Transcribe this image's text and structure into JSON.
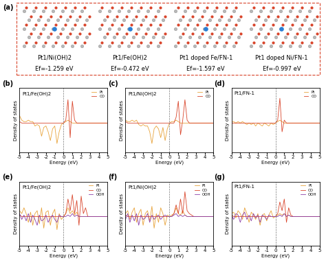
{
  "panel_a": {
    "label": "(a)",
    "structures": [
      {
        "name": "Pt1/Ni(OH)2",
        "energy": "Ef=-1.259 eV"
      },
      {
        "name": "Pt1/Fe(OH)2",
        "energy": "Ef=-0.472 eV"
      },
      {
        "name": "Pt1 doped Fe/FN-1",
        "energy": "Ef=-1.597 eV"
      },
      {
        "name": "Pt1 doped Ni/FN-1",
        "energy": "Ef=-0.997 eV"
      }
    ]
  },
  "chart_data": [
    {
      "panel": "(b)",
      "type": "line",
      "title": "Pt1/Fe(OH)2",
      "xlabel": "Energy (eV)",
      "ylabel": "Density of states",
      "x": [
        -5,
        -4.75,
        -4.5,
        -4.25,
        -4,
        -3.75,
        -3.5,
        -3.25,
        -3,
        -2.75,
        -2.5,
        -2.25,
        -2,
        -1.75,
        -1.5,
        -1.25,
        -1,
        -0.75,
        -0.5,
        -0.25,
        0,
        0.25,
        0.5,
        0.75,
        1,
        1.25,
        1.5,
        1.75,
        2,
        2.25,
        2.5,
        2.75,
        3,
        3.25,
        3.5,
        3.75,
        4,
        4.25,
        4.5,
        4.75,
        5
      ],
      "xlim": [
        -5,
        5
      ],
      "xticks": [
        -5,
        -4,
        -3,
        -2,
        -1,
        0,
        1,
        2,
        3,
        4,
        5
      ],
      "ylim": [
        -1,
        1.2
      ],
      "tick_labels": "x",
      "legend": "upper right",
      "series": [
        {
          "name": "Pt",
          "color": "#e8a33a",
          "values": [
            0.25,
            0.1,
            0.05,
            0.05,
            0.1,
            0.05,
            0.05,
            -0.1,
            -0.05,
            -0.1,
            -0.45,
            -0.15,
            -0.1,
            -0.3,
            -0.6,
            -0.2,
            -0.1,
            -0.7,
            -0.3,
            -0.05,
            0,
            0.05,
            0.1,
            0.05,
            0,
            0,
            0,
            0,
            0,
            0,
            0,
            0,
            0,
            0,
            0,
            0,
            0,
            0,
            0,
            0,
            0
          ]
        },
        {
          "name": "CO",
          "color": "#d9452b",
          "values": [
            0.05,
            0,
            0,
            0,
            0,
            0,
            0,
            0,
            0,
            0,
            0,
            0,
            0,
            0,
            0,
            0,
            0,
            0,
            0,
            0,
            0,
            0.1,
            0.8,
            -0.5,
            0.75,
            0.1,
            0,
            0,
            0,
            0,
            0,
            0,
            0,
            0,
            0,
            0,
            0,
            0,
            0,
            0,
            0
          ]
        }
      ]
    },
    {
      "panel": "(c)",
      "type": "line",
      "title": "Pt1/Ni(OH)2",
      "xlabel": "Energy (eV)",
      "ylabel": "Density of states",
      "x": [
        -5,
        -4.75,
        -4.5,
        -4.25,
        -4,
        -3.75,
        -3.5,
        -3.25,
        -3,
        -2.75,
        -2.5,
        -2.25,
        -2,
        -1.75,
        -1.5,
        -1.25,
        -1,
        -0.75,
        -0.5,
        -0.25,
        0,
        0.25,
        0.5,
        0.75,
        1,
        1.25,
        1.5,
        1.75,
        2,
        2.25,
        2.5,
        2.75,
        3,
        3.25,
        3.5,
        3.75,
        4,
        4.25,
        4.5,
        4.75,
        5
      ],
      "xlim": [
        -5,
        5
      ],
      "xticks": [
        -5,
        -4,
        -3,
        -2,
        -1,
        0,
        1,
        2,
        3,
        4,
        5
      ],
      "ylim": [
        -1,
        1.2
      ],
      "tick_labels": "x",
      "legend": "upper right",
      "series": [
        {
          "name": "Pt",
          "color": "#e8a33a",
          "values": [
            0.1,
            0.05,
            0.05,
            0.1,
            0.05,
            0.1,
            -0.05,
            -0.1,
            -0.05,
            -0.1,
            -0.1,
            -0.3,
            -0.7,
            -0.2,
            -0.1,
            -0.2,
            -0.5,
            -0.15,
            -0.6,
            -0.2,
            0,
            0.05,
            0.05,
            0.1,
            0.05,
            0,
            0,
            0,
            0,
            0,
            0,
            0,
            0,
            0,
            0,
            0,
            0,
            0,
            0,
            0,
            0
          ]
        },
        {
          "name": "CO",
          "color": "#d9452b",
          "values": [
            0.05,
            0,
            0,
            0,
            0,
            0,
            0,
            0,
            0,
            0,
            0,
            0,
            0,
            0,
            0,
            0,
            0,
            0,
            0,
            0,
            0,
            0,
            0,
            0.2,
            0.75,
            -0.4,
            0.1,
            0.8,
            0.1,
            0,
            0,
            0,
            0,
            0,
            0,
            0,
            0,
            0,
            0,
            0,
            0
          ]
        }
      ]
    },
    {
      "panel": "(d)",
      "type": "line",
      "title": "Pt1/FN-1",
      "xlabel": "Energy (eV)",
      "ylabel": "Density of states",
      "x": [
        -5,
        -4.75,
        -4.5,
        -4.25,
        -4,
        -3.75,
        -3.5,
        -3.25,
        -3,
        -2.75,
        -2.5,
        -2.25,
        -2,
        -1.75,
        -1.5,
        -1.25,
        -1,
        -0.75,
        -0.5,
        -0.25,
        0,
        0.25,
        0.5,
        0.75,
        1,
        1.25,
        1.5,
        1.75,
        2,
        2.25,
        2.5,
        2.75,
        3,
        3.25,
        3.5,
        3.75,
        4,
        4.25,
        4.5,
        4.75,
        5
      ],
      "xlim": [
        -5,
        5
      ],
      "xticks": [
        -5,
        -4,
        -3,
        -2,
        -1,
        0,
        1,
        2,
        3,
        4,
        5
      ],
      "ylim": [
        -1,
        1.2
      ],
      "tick_labels": "x",
      "legend": "upper right",
      "series": [
        {
          "name": "Pt",
          "color": "#e8a33a",
          "values": [
            0.05,
            0.05,
            0,
            0.05,
            0,
            0.05,
            0,
            -0.05,
            0,
            -0.05,
            0,
            -0.1,
            0,
            -0.05,
            -0.1,
            0,
            -0.05,
            -0.1,
            0,
            -0.05,
            0,
            0.05,
            0.1,
            0.05,
            0,
            0,
            0,
            0,
            0,
            0,
            0,
            0,
            0,
            0,
            0,
            0,
            0,
            0,
            0,
            0,
            0
          ]
        },
        {
          "name": "CO",
          "color": "#d9452b",
          "values": [
            0,
            0,
            0,
            0,
            0,
            0,
            0,
            0,
            0,
            0,
            0,
            0,
            0,
            0,
            0,
            0,
            0,
            0,
            0,
            0,
            0,
            0.1,
            0.85,
            -0.3,
            0.1,
            0,
            0,
            0,
            0,
            0,
            0,
            0,
            0,
            0,
            0,
            0,
            0,
            0,
            0,
            0,
            0
          ]
        }
      ]
    },
    {
      "panel": "(e)",
      "type": "line",
      "title": "Pt1/Fe(OH)2",
      "xlabel": "Energy (eV)",
      "ylabel": "Density of states",
      "x": [
        -5,
        -4.75,
        -4.5,
        -4.25,
        -4,
        -3.75,
        -3.5,
        -3.25,
        -3,
        -2.75,
        -2.5,
        -2.25,
        -2,
        -1.75,
        -1.5,
        -1.25,
        -1,
        -0.75,
        -0.5,
        -0.25,
        0,
        0.25,
        0.5,
        0.75,
        1,
        1.25,
        1.5,
        1.75,
        2,
        2.25,
        2.5,
        2.75,
        3,
        3.25,
        3.5,
        3.75,
        4,
        4.25,
        4.5,
        4.75,
        5
      ],
      "xlim": [
        -5,
        5
      ],
      "xticks": [
        -5,
        -4,
        -3,
        -2,
        -1,
        0,
        1,
        2,
        3,
        4,
        5
      ],
      "ylim": [
        -1,
        1.2
      ],
      "tick_labels": "x",
      "legend": "upper right",
      "series": [
        {
          "name": "Pt",
          "color": "#e8a33a",
          "values": [
            0.2,
            0.1,
            0.3,
            0.1,
            -0.2,
            0.15,
            -0.3,
            0.1,
            0.2,
            -0.25,
            0.3,
            -0.4,
            0.15,
            0.2,
            -0.3,
            0.1,
            0.25,
            -0.45,
            0.1,
            -0.1,
            0,
            0.1,
            0.3,
            0.1,
            0.2,
            0.05,
            0.15,
            0,
            0,
            0,
            0,
            0,
            0,
            0,
            0,
            0,
            0,
            0,
            0,
            0,
            0
          ]
        },
        {
          "name": "CO",
          "color": "#d9452b",
          "values": [
            0.05,
            0,
            0,
            0,
            0,
            0,
            0,
            0,
            0,
            0,
            0,
            0,
            0,
            0,
            0,
            0,
            0,
            0,
            0,
            0,
            0,
            0.1,
            0.6,
            0.2,
            0.75,
            0.1,
            0.55,
            -0.3,
            0.7,
            0.1,
            0.3,
            0,
            0,
            0,
            0,
            0,
            0,
            0,
            0,
            0,
            0
          ]
        },
        {
          "name": "OOH",
          "color": "#8b3fa8",
          "values": [
            0.1,
            -0.1,
            0.05,
            -0.15,
            0.1,
            -0.2,
            0.05,
            -0.1,
            -0.3,
            0.05,
            -0.15,
            -0.1,
            0.05,
            -0.2,
            -0.05,
            0.05,
            -0.1,
            -0.2,
            0.05,
            0,
            0,
            0,
            0.05,
            0,
            0.1,
            0,
            0.05,
            0,
            0,
            0,
            0,
            0,
            0,
            0,
            0,
            0,
            0,
            0,
            0,
            0,
            0
          ]
        }
      ]
    },
    {
      "panel": "(f)",
      "type": "line",
      "title": "Pt1/Ni(OH)2",
      "xlabel": "Energy (eV)",
      "ylabel": "Density of states",
      "x": [
        -5,
        -4.75,
        -4.5,
        -4.25,
        -4,
        -3.75,
        -3.5,
        -3.25,
        -3,
        -2.75,
        -2.5,
        -2.25,
        -2,
        -1.75,
        -1.5,
        -1.25,
        -1,
        -0.75,
        -0.5,
        -0.25,
        0,
        0.25,
        0.5,
        0.75,
        1,
        1.25,
        1.5,
        1.75,
        2,
        2.25,
        2.5,
        2.75,
        3,
        3.25,
        3.5,
        3.75,
        4,
        4.25,
        4.5,
        4.75,
        5
      ],
      "xlim": [
        -5,
        5
      ],
      "xticks": [
        -5,
        -4,
        -3,
        -2,
        -1,
        0,
        1,
        2,
        3,
        4,
        5
      ],
      "ylim": [
        -1,
        1.2
      ],
      "tick_labels": "x",
      "legend": "upper right",
      "series": [
        {
          "name": "Pt",
          "color": "#e8a33a",
          "values": [
            0.1,
            0.2,
            -0.1,
            0.15,
            0.3,
            -0.2,
            0.1,
            0.25,
            -0.3,
            0.1,
            0.2,
            -0.15,
            0.35,
            -0.4,
            0.1,
            -0.2,
            0.3,
            0.1,
            -0.3,
            0.05,
            0,
            0.05,
            0.1,
            0.3,
            0.1,
            0.05,
            0.2,
            0.05,
            0,
            0,
            0,
            0,
            0,
            0,
            0,
            0,
            0,
            0,
            0,
            0,
            0
          ]
        },
        {
          "name": "CO",
          "color": "#d9452b",
          "values": [
            0.05,
            0,
            0,
            0,
            0,
            0,
            0,
            0,
            0,
            0,
            0,
            0,
            0,
            0,
            0,
            0,
            0,
            0,
            0,
            0,
            0,
            0,
            0.1,
            0.4,
            0.1,
            0.6,
            0.1,
            0.85,
            0.2,
            0.1,
            0.05,
            0,
            0,
            0,
            0,
            0,
            0,
            0,
            0,
            0,
            0
          ]
        },
        {
          "name": "OOH",
          "color": "#8b3fa8",
          "values": [
            -0.1,
            0.1,
            -0.2,
            0.05,
            -0.15,
            0.1,
            -0.3,
            0.05,
            -0.1,
            -0.05,
            0.1,
            -0.2,
            0.05,
            -0.1,
            0,
            0.05,
            -0.1,
            0,
            0.05,
            0,
            0,
            0,
            0.05,
            0.1,
            0,
            0.05,
            0,
            0.05,
            0,
            0,
            0,
            0,
            0,
            0,
            0,
            0,
            0,
            0,
            0,
            0,
            0
          ]
        }
      ]
    },
    {
      "panel": "(g)",
      "type": "line",
      "title": "Pt1/FN-1",
      "xlabel": "Energy (eV)",
      "ylabel": "Density of states",
      "x": [
        -5,
        -4.75,
        -4.5,
        -4.25,
        -4,
        -3.75,
        -3.5,
        -3.25,
        -3,
        -2.75,
        -2.5,
        -2.25,
        -2,
        -1.75,
        -1.5,
        -1.25,
        -1,
        -0.75,
        -0.5,
        -0.25,
        0,
        0.25,
        0.5,
        0.75,
        1,
        1.25,
        1.5,
        1.75,
        2,
        2.25,
        2.5,
        2.75,
        3,
        3.25,
        3.5,
        3.75,
        4,
        4.25,
        4.5,
        4.75,
        5
      ],
      "xlim": [
        -5,
        5
      ],
      "xticks": [
        -5,
        -4,
        -3,
        -2,
        -1,
        0,
        1,
        2,
        3,
        4,
        5
      ],
      "ylim": [
        -1,
        1.2
      ],
      "tick_labels": "x",
      "legend": "upper right",
      "series": [
        {
          "name": "Pt",
          "color": "#e8a33a",
          "values": [
            0.1,
            0.15,
            -0.05,
            0.2,
            0.1,
            -0.1,
            0.3,
            0.1,
            -0.2,
            0.15,
            0.05,
            -0.1,
            0.1,
            -0.3,
            0.05,
            0.1,
            -0.15,
            0.05,
            0.2,
            -0.05,
            0,
            0.05,
            0.1,
            0.05,
            0.1,
            0,
            0.05,
            0,
            0,
            0,
            0,
            0,
            0,
            0,
            0,
            0,
            0,
            0,
            0,
            0,
            0
          ]
        },
        {
          "name": "CO",
          "color": "#d9452b",
          "values": [
            0.05,
            0,
            0,
            0,
            0,
            0,
            0,
            0,
            0,
            0,
            0,
            0,
            0,
            0,
            0,
            0,
            0,
            0,
            0,
            0,
            0,
            0.1,
            0.5,
            0.2,
            0.6,
            -0.2,
            0.3,
            0.05,
            0,
            0,
            0,
            0,
            0,
            0,
            0,
            0,
            0,
            0,
            0,
            0,
            0
          ]
        },
        {
          "name": "OOH",
          "color": "#8b3fa8",
          "values": [
            0.05,
            -0.1,
            0.1,
            0.05,
            -0.2,
            0.05,
            0.15,
            -0.1,
            0.05,
            -0.15,
            0.1,
            -0.05,
            0.05,
            -0.2,
            0.05,
            0,
            -0.1,
            0.05,
            0,
            0,
            0,
            0,
            0.05,
            0,
            0.1,
            0,
            0.05,
            0,
            0,
            0,
            0,
            0,
            0,
            0,
            0,
            0,
            0,
            0,
            0,
            0,
            0
          ]
        }
      ]
    }
  ]
}
